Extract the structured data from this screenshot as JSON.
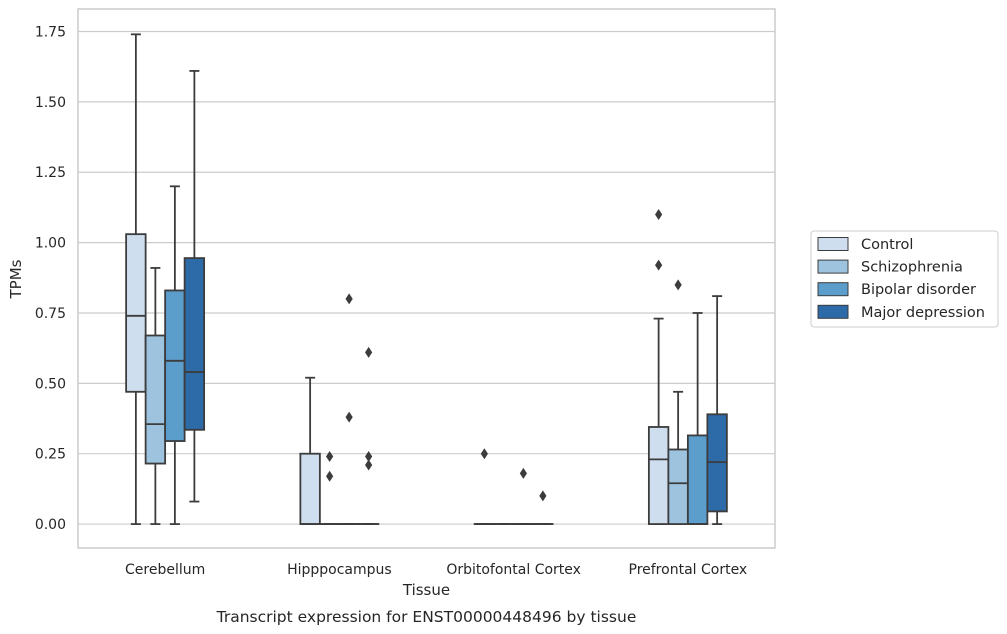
{
  "chart_data": {
    "type": "boxplot",
    "caption": "Transcript expression for ENST00000448496 by tissue",
    "xlabel": "Tissue",
    "ylabel": "TPMs",
    "ylim": [
      -0.085,
      1.83
    ],
    "yticks": [
      "0.00",
      "0.25",
      "0.50",
      "0.75",
      "1.00",
      "1.25",
      "1.50",
      "1.75"
    ],
    "grid": true,
    "legend_position": "right",
    "categories": [
      "Cerebellum",
      "Hipppocampus",
      "Orbitofontal Cortex",
      "Prefrontal Cortex"
    ],
    "series": [
      {
        "name": "Control",
        "color": "#cfdeee",
        "boxes": [
          {
            "whislo": 0.0,
            "q1": 0.47,
            "med": 0.74,
            "q3": 1.03,
            "whishi": 1.74,
            "fliers": []
          },
          {
            "whislo": 0.0,
            "q1": 0.0,
            "med": 0.0,
            "q3": 0.25,
            "whishi": 0.52,
            "fliers": []
          },
          {
            "whislo": 0.0,
            "q1": 0.0,
            "med": 0.0,
            "q3": 0.0,
            "whishi": 0.0,
            "fliers": [
              0.25
            ]
          },
          {
            "whislo": 0.0,
            "q1": 0.0,
            "med": 0.23,
            "q3": 0.345,
            "whishi": 0.73,
            "fliers": [
              0.92,
              1.1
            ]
          }
        ]
      },
      {
        "name": "Schizophrenia",
        "color": "#9dc3de",
        "boxes": [
          {
            "whislo": 0.0,
            "q1": 0.215,
            "med": 0.355,
            "q3": 0.67,
            "whishi": 0.91,
            "fliers": []
          },
          {
            "whislo": 0.0,
            "q1": 0.0,
            "med": 0.0,
            "q3": 0.0,
            "whishi": 0.0,
            "fliers": [
              0.17,
              0.24
            ]
          },
          {
            "whislo": 0.0,
            "q1": 0.0,
            "med": 0.0,
            "q3": 0.0,
            "whishi": 0.0,
            "fliers": []
          },
          {
            "whislo": 0.0,
            "q1": 0.0,
            "med": 0.145,
            "q3": 0.265,
            "whishi": 0.47,
            "fliers": [
              0.85
            ]
          }
        ]
      },
      {
        "name": "Bipolar disorder",
        "color": "#5b9dcb",
        "boxes": [
          {
            "whislo": 0.0,
            "q1": 0.295,
            "med": 0.58,
            "q3": 0.83,
            "whishi": 1.2,
            "fliers": []
          },
          {
            "whislo": 0.0,
            "q1": 0.0,
            "med": 0.0,
            "q3": 0.0,
            "whishi": 0.0,
            "fliers": [
              0.38,
              0.8
            ]
          },
          {
            "whislo": 0.0,
            "q1": 0.0,
            "med": 0.0,
            "q3": 0.0,
            "whishi": 0.0,
            "fliers": [
              0.18
            ]
          },
          {
            "whislo": 0.0,
            "q1": 0.0,
            "med": 0.0,
            "q3": 0.315,
            "whishi": 0.75,
            "fliers": []
          }
        ]
      },
      {
        "name": "Major depression",
        "color": "#2d6aa8",
        "boxes": [
          {
            "whislo": 0.08,
            "q1": 0.335,
            "med": 0.54,
            "q3": 0.945,
            "whishi": 1.61,
            "fliers": []
          },
          {
            "whislo": 0.0,
            "q1": 0.0,
            "med": 0.0,
            "q3": 0.0,
            "whishi": 0.0,
            "fliers": [
              0.21,
              0.24,
              0.61
            ]
          },
          {
            "whislo": 0.0,
            "q1": 0.0,
            "med": 0.0,
            "q3": 0.0,
            "whishi": 0.0,
            "fliers": [
              0.1
            ]
          },
          {
            "whislo": 0.0,
            "q1": 0.045,
            "med": 0.22,
            "q3": 0.39,
            "whishi": 0.81,
            "fliers": []
          }
        ]
      }
    ]
  }
}
